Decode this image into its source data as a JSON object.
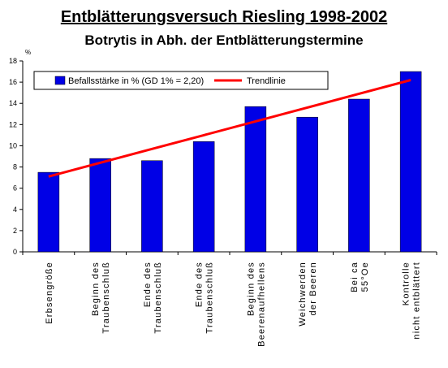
{
  "chart_data": {
    "type": "bar",
    "title": "Entblätterungsversuch Riesling 1998-2002",
    "subtitle": "Botrytis in Abh. der Entblätterungstermine",
    "ylabel": "%",
    "ylim": [
      0,
      18
    ],
    "yticks": [
      "0",
      "2",
      "4",
      "6",
      "8",
      "10",
      "12",
      "14",
      "16",
      "18"
    ],
    "grid": false,
    "legend_position": "top-left",
    "categories": [
      [
        "Erbsengröße"
      ],
      [
        "Beginn des",
        "Traubenschluß"
      ],
      [
        "Ende des",
        "Traubenschluß"
      ],
      [
        "Ende des",
        "Traubenschluß"
      ],
      [
        "Beginn des",
        "Beerenaufhellens"
      ],
      [
        "Weichwerden",
        "der Beeren"
      ],
      [
        "Bei ca",
        "55°Oe"
      ],
      [
        "Kontrolle",
        "nicht entblättert"
      ]
    ],
    "series": [
      {
        "name": "Befallsstärke in % (GD 1% = 2,20)",
        "type": "bar",
        "color": "#0000e6",
        "values": [
          7.5,
          8.8,
          8.6,
          10.4,
          13.7,
          12.7,
          14.4,
          17.0
        ]
      },
      {
        "name": "Trendlinie",
        "type": "line",
        "color": "#ff0000",
        "values": [
          7.1,
          8.4,
          9.7,
          11.0,
          12.3,
          13.6,
          14.9,
          16.2
        ]
      }
    ]
  }
}
